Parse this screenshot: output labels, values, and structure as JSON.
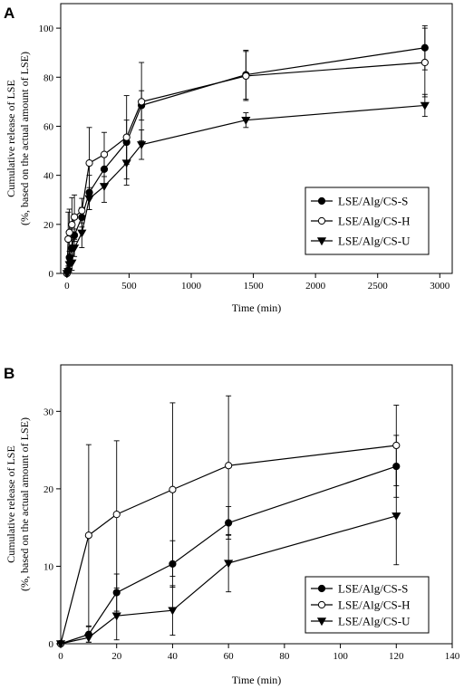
{
  "chart_data": [
    {
      "panel_label": "A",
      "type": "line",
      "xlabel": "Time (min)",
      "ylabel_line1": "Cumulative release of LSE",
      "ylabel_line2": "(%, based on the actual amount of  LSE)",
      "xlim": [
        -50,
        3100
      ],
      "ylim": [
        0,
        110
      ],
      "xticks": [
        0,
        500,
        1000,
        1500,
        2000,
        2500,
        3000
      ],
      "yticks": [
        0,
        20,
        40,
        60,
        80,
        100
      ],
      "legend_position": "lower-right",
      "series": [
        {
          "name": "LSE/Alg/CS-S",
          "marker": "filled-circle",
          "x": [
            0,
            10,
            20,
            40,
            60,
            120,
            180,
            300,
            480,
            600,
            1440,
            2880
          ],
          "y": [
            0,
            1.2,
            6.5,
            10.3,
            15.6,
            22.9,
            33,
            42.5,
            53.5,
            68.5,
            81,
            92
          ],
          "err": [
            0,
            1,
            2.5,
            3,
            2.5,
            4,
            7,
            6,
            9,
            6,
            10,
            9
          ]
        },
        {
          "name": "LSE/Alg/CS-H",
          "marker": "open-circle",
          "x": [
            0,
            10,
            20,
            40,
            60,
            120,
            180,
            300,
            480,
            600,
            1440,
            2880
          ],
          "y": [
            0,
            14,
            16.7,
            19.9,
            23,
            25.6,
            45,
            48.5,
            55.5,
            70,
            80.5,
            86
          ],
          "err": [
            0,
            11,
            9.5,
            11,
            9,
            5,
            14.5,
            9,
            17,
            16,
            10,
            14
          ]
        },
        {
          "name": "LSE/Alg/CS-U",
          "marker": "filled-triangle-down",
          "x": [
            0,
            10,
            20,
            40,
            60,
            120,
            180,
            300,
            480,
            600,
            1440,
            2880
          ],
          "y": [
            0,
            0.8,
            3.6,
            4.3,
            10.4,
            16.5,
            30.5,
            35.5,
            45,
            52.5,
            62.5,
            68.5
          ],
          "err": [
            0,
            0.5,
            3,
            3,
            3.5,
            6,
            4.5,
            6.5,
            9,
            6,
            3,
            4.5
          ]
        }
      ]
    },
    {
      "panel_label": "B",
      "type": "line",
      "xlabel": "Time (min)",
      "ylabel_line1": "Cumulative release of LSE",
      "ylabel_line2": "(%, based on the actual amount of  LSE)",
      "xlim": [
        0,
        140
      ],
      "ylim": [
        0,
        36
      ],
      "xticks": [
        0,
        20,
        40,
        60,
        80,
        100,
        120,
        140
      ],
      "yticks": [
        0,
        10,
        20,
        30
      ],
      "legend_position": "lower-right",
      "series": [
        {
          "name": "LSE/Alg/CS-S",
          "marker": "filled-circle",
          "x": [
            0,
            10,
            20,
            40,
            60,
            120
          ],
          "y": [
            0,
            1.2,
            6.6,
            10.3,
            15.6,
            22.9
          ],
          "err": [
            0,
            1.0,
            2.4,
            3.0,
            2.1,
            4.0
          ]
        },
        {
          "name": "LSE/Alg/CS-H",
          "marker": "open-circle",
          "x": [
            0,
            10,
            20,
            40,
            60,
            120
          ],
          "y": [
            0,
            14.0,
            16.7,
            19.9,
            23.0,
            25.6
          ],
          "err": [
            0,
            11.7,
            9.5,
            11.2,
            9.0,
            5.2
          ]
        },
        {
          "name": "LSE/Alg/CS-U",
          "marker": "filled-triangle-down",
          "x": [
            0,
            10,
            20,
            40,
            60,
            120
          ],
          "y": [
            0,
            0.8,
            3.6,
            4.3,
            10.4,
            16.5
          ],
          "err": [
            0,
            0.6,
            3.1,
            3.2,
            3.7,
            6.3
          ]
        }
      ]
    }
  ]
}
